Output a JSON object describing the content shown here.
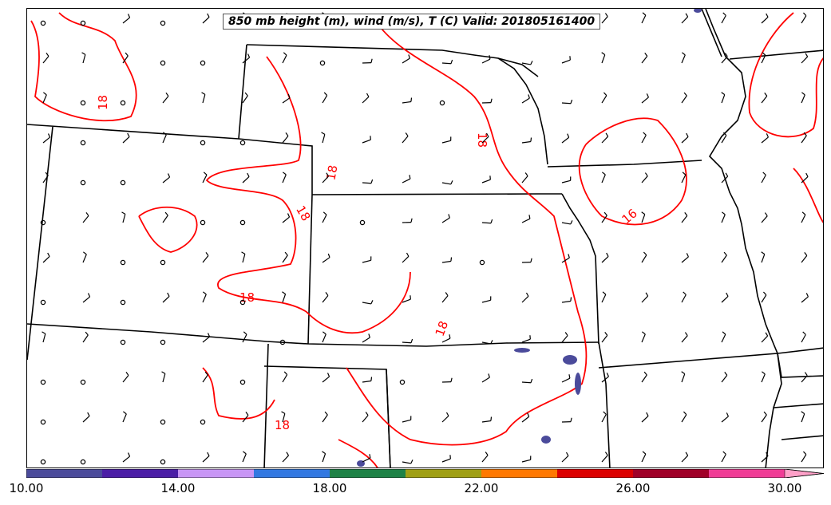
{
  "title": "850 mb height (m), wind (m/s), T (C) Valid: 201805161400",
  "colorbar": {
    "colors": [
      "#4b4b9b",
      "#4b1ea6",
      "#c896f5",
      "#3278e1",
      "#1e8246",
      "#a0a014",
      "#ff7800",
      "#dc0000",
      "#a00028",
      "#f03c96",
      "#ffa0c8"
    ],
    "tick_labels": [
      "10.00",
      "14.00",
      "18.00",
      "22.00",
      "26.00",
      "30.00"
    ],
    "tick_values": [
      10,
      14,
      18,
      22,
      26,
      30
    ],
    "min": 10,
    "max": 31
  },
  "contour_color": "#ff0000",
  "contour_labels": [
    "18",
    "18",
    "18",
    "18",
    "18",
    "18",
    "18",
    "16"
  ],
  "icons": [
    "wind-barb-icon",
    "calm-wind-circle-icon"
  ]
}
